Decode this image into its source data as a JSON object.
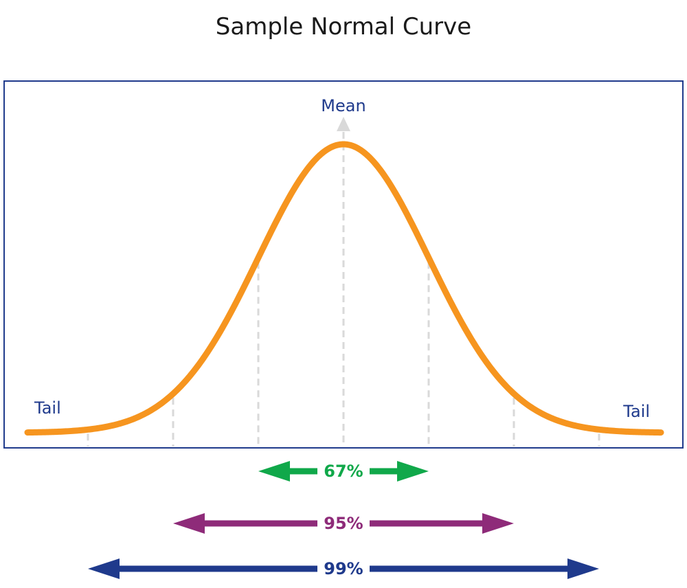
{
  "title": "Sample Normal Curve",
  "labels": {
    "mean": "Mean",
    "tail_left": "Tail",
    "tail_right": "Tail"
  },
  "ranges": [
    {
      "label": "67%",
      "sigma": 1,
      "color": "#10a84a"
    },
    {
      "label": "95%",
      "sigma": 2,
      "color": "#8e2b79"
    },
    {
      "label": "99%",
      "sigma": 3,
      "color": "#1f3a8c"
    }
  ],
  "colors": {
    "curve": "#f6951f",
    "frame": "#1f3a8c",
    "guides": "#d9d9d9",
    "label": "#1f3a8c"
  }
}
